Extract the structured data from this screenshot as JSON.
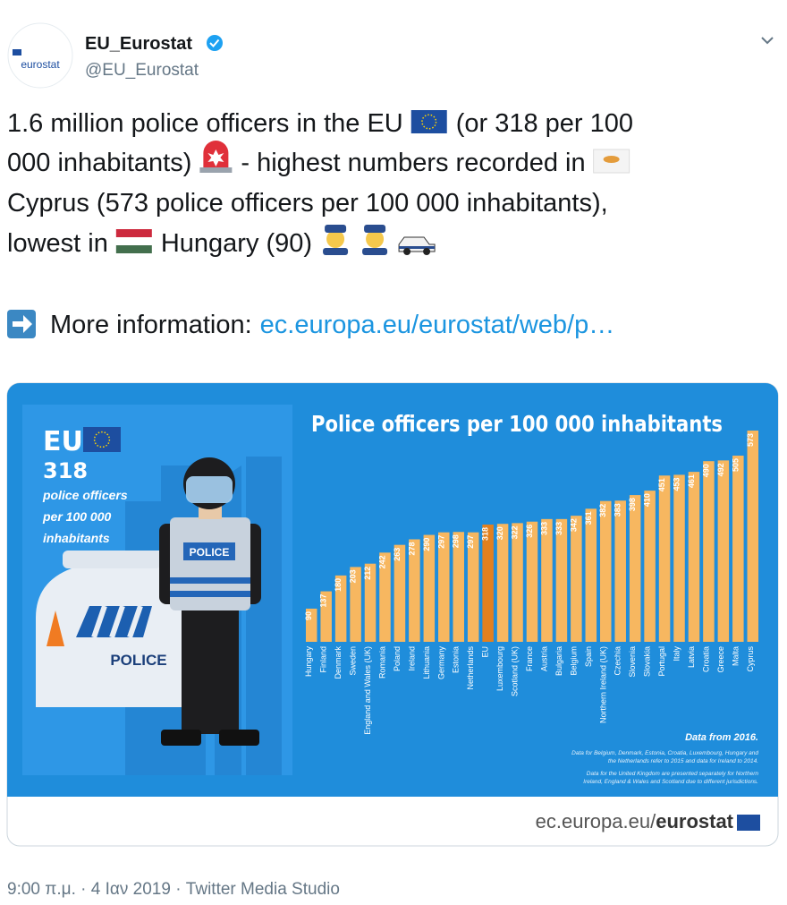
{
  "tweet": {
    "avatar_label": "eurostat",
    "name": "EU_Eurostat",
    "handle": "@EU_Eurostat",
    "text": [
      "1.6 million police officers in the EU",
      "(or 318 per 100",
      "000 inhabitants)",
      "- highest numbers recorded in",
      "Cyprus (573 police officers per 100 000 inhabitants),",
      "lowest in",
      "Hungary (90)"
    ],
    "more_label": "More information:",
    "link": "ec.europa.eu/eurostat/web/p…",
    "timestamp": "9:00 π.μ. · 4 Ιαν 2019 · Twitter Media Studio"
  },
  "infographic": {
    "panel": {
      "title": "EU",
      "value": "318",
      "caption": [
        "police officers",
        "per 100 000",
        "inhabitants"
      ]
    },
    "police_vest": "POLICE",
    "police_car": "POLICE",
    "note_title": "Data from 2016.",
    "notes": [
      "Data for Belgium, Denmark, Estonia, Croatia, Luxembourg, Hungary and",
      "the Netherlands refer to 2015 and data for Ireland to 2014.",
      "Data for the United Kingdom are presented separately for Northern",
      "Ireland, England & Wales and Scotland due to different jurisdictions."
    ],
    "source_url": "ec.europa.eu/",
    "source_brand": "eurostat"
  },
  "chart_data": {
    "type": "bar",
    "title": "Police officers per 100 000 inhabitants",
    "categories": [
      "Hungary",
      "Finland",
      "Denmark",
      "Sweden",
      "England and Wales (UK)",
      "Romania",
      "Poland",
      "Ireland",
      "Lithuania",
      "Germany",
      "Estonia",
      "Netherlands",
      "EU",
      "Luxembourg",
      "Scotland (UK)",
      "France",
      "Austria",
      "Bulgaria",
      "Belgium",
      "Spain",
      "Northern Ireland (UK)",
      "Czechia",
      "Slovenia",
      "Slovakia",
      "Portugal",
      "Italy",
      "Latvia",
      "Croatia",
      "Greece",
      "Malta",
      "Cyprus"
    ],
    "values": [
      90,
      137,
      180,
      203,
      212,
      242,
      263,
      278,
      290,
      297,
      298,
      297,
      318,
      320,
      322,
      326,
      333,
      333,
      342,
      361,
      382,
      383,
      398,
      410,
      451,
      453,
      461,
      490,
      492,
      505,
      573
    ],
    "color": "#f7b760",
    "highlight": "EU",
    "highlight_color": "#e2801f"
  }
}
